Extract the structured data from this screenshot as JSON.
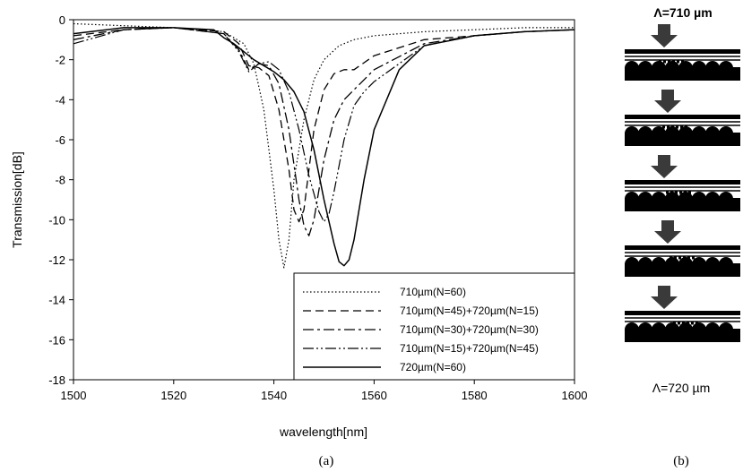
{
  "figure": {
    "panel_a_caption": "(a)",
    "panel_b_caption": "(b)",
    "panel_b_top_label": "Λ=710 µm",
    "panel_b_bottom_label": "Λ=720 µm"
  },
  "chart_data": {
    "type": "line",
    "title": "",
    "xlabel": "wavelength[nm]",
    "ylabel": "Transmission[dB]",
    "xlim": [
      1500,
      1600
    ],
    "ylim": [
      -18,
      0
    ],
    "xticks": [
      1500,
      1520,
      1540,
      1560,
      1580,
      1600
    ],
    "yticks": [
      0,
      -2,
      -4,
      -6,
      -8,
      -10,
      -12,
      -14,
      -16,
      -18
    ],
    "grid": false,
    "legend_position": "bottom-right",
    "series": [
      {
        "name": "710µm(N=60)",
        "style": "dotted",
        "x": [
          1500,
          1510,
          1520,
          1530,
          1534,
          1536,
          1538,
          1540,
          1541,
          1542,
          1543,
          1544,
          1546,
          1548,
          1550,
          1553,
          1556,
          1560,
          1570,
          1580,
          1590,
          1600
        ],
        "y": [
          -0.2,
          -0.3,
          -0.4,
          -0.6,
          -1.2,
          -2.2,
          -4.5,
          -8.5,
          -11.0,
          -12.4,
          -11.0,
          -8.0,
          -5.0,
          -3.0,
          -2.0,
          -1.3,
          -1.0,
          -0.8,
          -0.6,
          -0.5,
          -0.4,
          -0.4
        ]
      },
      {
        "name": "710µm(N=45)+720µm(N=15)",
        "style": "dashed",
        "x": [
          1500,
          1510,
          1520,
          1530,
          1533,
          1535,
          1537,
          1539,
          1541,
          1543,
          1544,
          1545,
          1546,
          1547,
          1548,
          1550,
          1552,
          1554,
          1556,
          1560,
          1570,
          1580,
          1590,
          1600
        ],
        "y": [
          -0.8,
          -0.5,
          -0.4,
          -0.6,
          -1.2,
          -2.3,
          -2.4,
          -2.8,
          -4.5,
          -7.5,
          -9.5,
          -10.1,
          -9.5,
          -7.5,
          -5.5,
          -3.5,
          -2.7,
          -2.5,
          -2.5,
          -1.8,
          -1.0,
          -0.8,
          -0.6,
          -0.5
        ]
      },
      {
        "name": "710µm(N=30)+720µm(N=30)",
        "style": "dashdot",
        "x": [
          1500,
          1510,
          1520,
          1530,
          1533,
          1535,
          1537,
          1539,
          1541,
          1543,
          1545,
          1546,
          1547,
          1548,
          1549,
          1550,
          1552,
          1554,
          1556,
          1560,
          1570,
          1580,
          1590,
          1600
        ],
        "y": [
          -1.0,
          -0.5,
          -0.4,
          -0.7,
          -1.5,
          -2.5,
          -2.2,
          -2.3,
          -3.2,
          -5.5,
          -9.0,
          -10.3,
          -10.8,
          -10.0,
          -8.5,
          -7.0,
          -5.0,
          -4.0,
          -3.5,
          -2.5,
          -1.2,
          -0.8,
          -0.6,
          -0.5
        ]
      },
      {
        "name": "710µm(N=15)+720µm(N=45)",
        "style": "dashdotdot",
        "x": [
          1500,
          1510,
          1520,
          1530,
          1533,
          1535,
          1537,
          1539,
          1541,
          1543,
          1545,
          1547,
          1549,
          1550,
          1551,
          1552,
          1554,
          1556,
          1558,
          1560,
          1570,
          1580,
          1590,
          1600
        ],
        "y": [
          -1.2,
          -0.5,
          -0.4,
          -0.7,
          -1.6,
          -2.6,
          -2.2,
          -2.1,
          -2.5,
          -3.6,
          -5.5,
          -7.8,
          -9.6,
          -10.1,
          -9.7,
          -8.6,
          -6.0,
          -4.3,
          -3.6,
          -3.1,
          -1.3,
          -0.8,
          -0.6,
          -0.5
        ]
      },
      {
        "name": "720µm(N=60)",
        "style": "solid",
        "x": [
          1500,
          1510,
          1520,
          1528,
          1530,
          1532,
          1534,
          1536,
          1538,
          1540,
          1542,
          1544,
          1546,
          1548,
          1550,
          1552,
          1553,
          1554,
          1555,
          1556,
          1558,
          1560,
          1565,
          1570,
          1580,
          1590,
          1600
        ],
        "y": [
          -0.7,
          -0.4,
          -0.4,
          -0.5,
          -0.9,
          -1.2,
          -1.6,
          -2.0,
          -2.3,
          -2.6,
          -3.0,
          -3.6,
          -4.6,
          -6.5,
          -9.0,
          -11.2,
          -12.1,
          -12.3,
          -12.0,
          -11.0,
          -8.0,
          -5.5,
          -2.5,
          -1.3,
          -0.8,
          -0.6,
          -0.5
        ]
      }
    ]
  }
}
